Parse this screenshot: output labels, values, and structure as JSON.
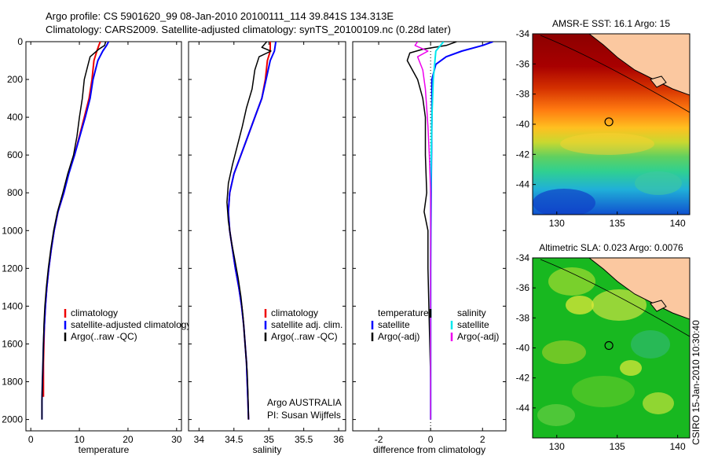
{
  "header": {
    "line1": "Argo profile: CS 5901620_99 08-Jan-2010 20100111_114 39.841S 134.313E",
    "line2": "Climatology: CARS2009. Satellite-adjusted climatology: synTS_20100109.nc (0.28d later)"
  },
  "colors": {
    "climatology": "#ee0000",
    "satellite": "#0000ff",
    "argo": "#000000",
    "cyan": "#00e8ee",
    "magenta": "#ee00ee"
  },
  "chart_data": [
    {
      "type": "line",
      "xlabel": "temperature",
      "xlim": [
        -1,
        31
      ],
      "ylim": [
        0,
        2060
      ],
      "xticks": [
        0,
        10,
        20,
        30
      ],
      "yticks": [
        0,
        200,
        400,
        600,
        800,
        1000,
        1200,
        1400,
        1600,
        1800,
        2000
      ],
      "series": [
        {
          "name": "climatology",
          "color": "#ee0000",
          "width": 2,
          "points": [
            [
              14.3,
              0
            ],
            [
              14.0,
              20
            ],
            [
              13.6,
              50
            ],
            [
              13.0,
              100
            ],
            [
              12.6,
              200
            ],
            [
              12.0,
              300
            ],
            [
              11.0,
              400
            ],
            [
              10.0,
              500
            ],
            [
              9.0,
              600
            ],
            [
              7.7,
              700
            ],
            [
              6.8,
              800
            ],
            [
              5.6,
              900
            ],
            [
              4.8,
              1000
            ],
            [
              4.2,
              1100
            ],
            [
              3.7,
              1200
            ],
            [
              3.3,
              1300
            ],
            [
              3.0,
              1400
            ],
            [
              2.8,
              1500
            ],
            [
              2.7,
              1600
            ],
            [
              2.6,
              1700
            ],
            [
              2.6,
              1800
            ],
            [
              2.6,
              1880
            ]
          ]
        },
        {
          "name": "satellite-adjusted climatology",
          "color": "#0000ff",
          "width": 2,
          "points": [
            [
              16.0,
              0
            ],
            [
              15.6,
              20
            ],
            [
              14.8,
              50
            ],
            [
              13.8,
              100
            ],
            [
              12.8,
              200
            ],
            [
              12.2,
              300
            ],
            [
              11.2,
              400
            ],
            [
              10.1,
              500
            ],
            [
              9.0,
              600
            ],
            [
              7.8,
              700
            ],
            [
              6.8,
              800
            ],
            [
              5.6,
              900
            ],
            [
              4.8,
              1000
            ],
            [
              4.2,
              1100
            ],
            [
              3.7,
              1200
            ],
            [
              3.3,
              1300
            ],
            [
              3.0,
              1400
            ],
            [
              2.8,
              1500
            ],
            [
              2.6,
              1600
            ],
            [
              2.5,
              1700
            ],
            [
              2.4,
              1800
            ],
            [
              2.3,
              1900
            ],
            [
              2.3,
              2000
            ]
          ]
        },
        {
          "name": "Argo(..raw -QC)",
          "color": "#000000",
          "width": 1.5,
          "points": [
            [
              15.4,
              0
            ],
            [
              15.2,
              20
            ],
            [
              14.0,
              40
            ],
            [
              12.2,
              80
            ],
            [
              11.8,
              120
            ],
            [
              11.0,
              200
            ],
            [
              10.6,
              300
            ],
            [
              10.0,
              400
            ],
            [
              9.5,
              500
            ],
            [
              8.8,
              600
            ],
            [
              7.6,
              700
            ],
            [
              6.6,
              800
            ],
            [
              5.5,
              900
            ],
            [
              4.7,
              1000
            ],
            [
              4.1,
              1100
            ],
            [
              3.6,
              1200
            ],
            [
              3.2,
              1300
            ],
            [
              2.9,
              1400
            ],
            [
              2.7,
              1500
            ],
            [
              2.6,
              1600
            ],
            [
              2.5,
              1700
            ],
            [
              2.4,
              1800
            ],
            [
              2.3,
              1900
            ],
            [
              2.3,
              2000
            ]
          ]
        }
      ],
      "legend": [
        "climatology",
        "satellite-adjusted climatology",
        "Argo(..raw -QC)"
      ]
    },
    {
      "type": "line",
      "xlabel": "salinity",
      "xlim": [
        33.85,
        36.1
      ],
      "ylim": [
        0,
        2060
      ],
      "xticks": [
        34,
        34.5,
        35,
        35.5,
        36
      ],
      "xtick_labels": [
        "34",
        "34.5",
        "35",
        "35.5",
        "36"
      ],
      "yticks": [
        0,
        200,
        400,
        600,
        800,
        1000,
        1200,
        1400,
        1600,
        1800,
        2000
      ],
      "series": [
        {
          "name": "climatology",
          "color": "#ee0000",
          "width": 2,
          "points": [
            [
              35.02,
              0
            ],
            [
              35.02,
              50
            ],
            [
              34.98,
              100
            ],
            [
              34.95,
              200
            ],
            [
              34.9,
              300
            ],
            [
              34.8,
              400
            ],
            [
              34.7,
              500
            ],
            [
              34.6,
              600
            ],
            [
              34.5,
              700
            ],
            [
              34.44,
              800
            ],
            [
              34.42,
              900
            ],
            [
              34.44,
              1000
            ],
            [
              34.48,
              1100
            ],
            [
              34.52,
              1200
            ],
            [
              34.57,
              1300
            ],
            [
              34.61,
              1400
            ],
            [
              34.64,
              1500
            ],
            [
              34.66,
              1600
            ],
            [
              34.68,
              1700
            ],
            [
              34.69,
              1800
            ],
            [
              34.7,
              1900
            ],
            [
              34.71,
              2000
            ]
          ]
        },
        {
          "name": "satellite adj. clim.",
          "color": "#0000ff",
          "width": 2,
          "points": [
            [
              35.1,
              0
            ],
            [
              35.08,
              50
            ],
            [
              35.02,
              100
            ],
            [
              34.96,
              200
            ],
            [
              34.9,
              300
            ],
            [
              34.8,
              400
            ],
            [
              34.7,
              500
            ],
            [
              34.6,
              600
            ],
            [
              34.5,
              700
            ],
            [
              34.44,
              800
            ],
            [
              34.42,
              900
            ],
            [
              34.44,
              1000
            ],
            [
              34.48,
              1100
            ],
            [
              34.52,
              1200
            ],
            [
              34.57,
              1300
            ],
            [
              34.61,
              1400
            ],
            [
              34.64,
              1500
            ],
            [
              34.66,
              1600
            ],
            [
              34.68,
              1700
            ],
            [
              34.69,
              1800
            ],
            [
              34.7,
              1900
            ],
            [
              34.71,
              2000
            ]
          ]
        },
        {
          "name": "Argo(..raw -QC)",
          "color": "#000000",
          "width": 1.5,
          "points": [
            [
              34.97,
              0
            ],
            [
              34.9,
              30
            ],
            [
              35.03,
              50
            ],
            [
              34.86,
              80
            ],
            [
              34.8,
              150
            ],
            [
              34.76,
              250
            ],
            [
              34.68,
              350
            ],
            [
              34.62,
              450
            ],
            [
              34.55,
              550
            ],
            [
              34.48,
              650
            ],
            [
              34.42,
              750
            ],
            [
              34.4,
              850
            ],
            [
              34.42,
              950
            ],
            [
              34.46,
              1050
            ],
            [
              34.51,
              1150
            ],
            [
              34.56,
              1250
            ],
            [
              34.6,
              1350
            ],
            [
              34.63,
              1450
            ],
            [
              34.65,
              1550
            ],
            [
              34.67,
              1650
            ],
            [
              34.69,
              1750
            ],
            [
              34.7,
              1850
            ],
            [
              34.71,
              2000
            ]
          ]
        }
      ],
      "legend": [
        "climatology",
        "satellite adj. clim.",
        "Argo(..raw -QC)"
      ],
      "annotation": [
        "Argo AUSTRALIA",
        "PI: Susan Wijffels"
      ]
    },
    {
      "type": "line",
      "xlabel": "difference from climatology",
      "xlim": [
        -3,
        2.9
      ],
      "ylim": [
        0,
        2060
      ],
      "xticks": [
        -2,
        0,
        2
      ],
      "yticks": [
        0,
        200,
        400,
        600,
        800,
        1000,
        1200,
        1400,
        1600,
        1800,
        2000
      ],
      "series": [
        {
          "name": "temperature satellite",
          "color": "#0000ff",
          "width": 2,
          "points": [
            [
              2.4,
              0
            ],
            [
              2.0,
              20
            ],
            [
              1.2,
              50
            ],
            [
              0.6,
              80
            ],
            [
              0.2,
              120
            ],
            [
              0.05,
              200
            ],
            [
              0.05,
              400
            ],
            [
              0.02,
              800
            ],
            [
              0.0,
              1200
            ],
            [
              0.0,
              1600
            ],
            [
              0.0,
              2000
            ]
          ]
        },
        {
          "name": "temperature Argo(-adj)",
          "color": "#000000",
          "width": 1.5,
          "points": [
            [
              1.0,
              0
            ],
            [
              0.6,
              20
            ],
            [
              -0.3,
              40
            ],
            [
              -0.8,
              60
            ],
            [
              -0.9,
              100
            ],
            [
              -0.5,
              200
            ],
            [
              -0.3,
              300
            ],
            [
              -0.2,
              400
            ],
            [
              -0.2,
              600
            ],
            [
              -0.15,
              800
            ],
            [
              -0.25,
              900
            ],
            [
              -0.1,
              1000
            ],
            [
              -0.1,
              1200
            ],
            [
              -0.05,
              1500
            ],
            [
              0.0,
              1800
            ],
            [
              0.0,
              2000
            ]
          ]
        },
        {
          "name": "salinity satellite",
          "color": "#00e8ee",
          "width": 2,
          "points": [
            [
              0.5,
              0
            ],
            [
              0.2,
              50
            ],
            [
              0.1,
              200
            ],
            [
              0.05,
              400
            ],
            [
              0.0,
              800
            ],
            [
              0.0,
              1200
            ],
            [
              0.0,
              1600
            ],
            [
              0.0,
              2000
            ]
          ]
        },
        {
          "name": "salinity Argo(-adj)",
          "color": "#ee00ee",
          "width": 1.5,
          "points": [
            [
              -0.5,
              0
            ],
            [
              -0.6,
              20
            ],
            [
              -0.1,
              50
            ],
            [
              -0.5,
              80
            ],
            [
              -0.3,
              150
            ],
            [
              -0.2,
              250
            ],
            [
              -0.15,
              350
            ],
            [
              -0.1,
              450
            ],
            [
              -0.05,
              600
            ],
            [
              0.0,
              800
            ],
            [
              0.0,
              1200
            ],
            [
              0.0,
              1600
            ],
            [
              0.0,
              2000
            ]
          ]
        }
      ],
      "legend_headers": [
        "temperature",
        "salinity"
      ],
      "legend_left": [
        "satellite",
        "Argo(-adj)"
      ],
      "legend_right": [
        "satellite",
        "Argo(-adj)"
      ]
    },
    {
      "type": "heatmap",
      "title": "AMSR-E SST: 16.1 Argo: 15",
      "xlim": [
        128,
        141
      ],
      "ylim": [
        -46,
        -34
      ],
      "xticks": [
        130,
        135,
        140
      ],
      "yticks": [
        -34,
        -36,
        -38,
        -40,
        -42,
        -44
      ],
      "marker": [
        134.313,
        -39.841
      ]
    },
    {
      "type": "heatmap",
      "title": "Altimetric SLA: 0.023 Argo: 0.0076",
      "xlim": [
        128,
        141
      ],
      "ylim": [
        -46,
        -34
      ],
      "xticks": [
        130,
        135,
        140
      ],
      "yticks": [
        -34,
        -36,
        -38,
        -40,
        -42,
        -44
      ],
      "marker": [
        134.313,
        -39.841
      ]
    }
  ],
  "footer": {
    "stamp": "CSIRO 15-Jan-2010 10:30:40"
  }
}
